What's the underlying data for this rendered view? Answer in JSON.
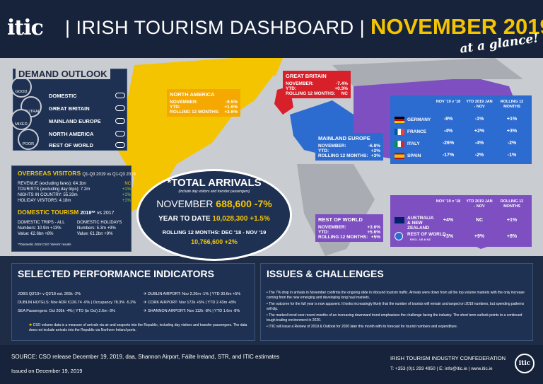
{
  "header": {
    "logo": "itic",
    "title": "| IRISH TOURISM DASHBOARD |",
    "month": "NOVEMBER 2019",
    "tagline": "at a glance!"
  },
  "demand": {
    "title": "DEMAND OUTLOOK",
    "gauges": [
      "GOOD",
      "NEUTRAL",
      "MIXED",
      "POOR"
    ],
    "items": [
      "DOMESTIC",
      "GREAT BRITAIN",
      "MAINLAND EUROPE",
      "NORTH AMERICA",
      "REST OF WORLD"
    ]
  },
  "north_america": {
    "title": "NORTH AMERICA",
    "rows": [
      {
        "label": "NOVEMBER:",
        "value": "-9.5%"
      },
      {
        "label": "YTD:",
        "value": "+1.6%"
      },
      {
        "label": "ROLLING 12 MONTHS:",
        "value": "+2.6%"
      }
    ]
  },
  "great_britain": {
    "title": "GREAT BRITAIN",
    "rows": [
      {
        "label": "NOVEMBER:",
        "value": "-7.4%"
      },
      {
        "label": "YTD:",
        "value": "+0.3%"
      },
      {
        "label": "ROLLING 12 MONTHS:",
        "value": "NC"
      }
    ]
  },
  "mainland_europe": {
    "title": "MAINLAND EUROPE",
    "rows": [
      {
        "label": "NOVEMBER:",
        "value": "-6.8%"
      },
      {
        "label": "YTD:",
        "value": "+2%"
      },
      {
        "label": "ROLLING 12 MONTHS:",
        "value": "+3%"
      }
    ]
  },
  "rest_of_world": {
    "title": "REST OF WORLD",
    "rows": [
      {
        "label": "NOVEMBER:",
        "value": "+3.6%"
      },
      {
        "label": "YTD:",
        "value": "+5.6%"
      },
      {
        "label": "ROLLING 12 MONTHS:",
        "value": "+5%"
      }
    ]
  },
  "europe_table": {
    "headers": [
      "NOV '19 v '18",
      "YTD 2019 JAN - NOV",
      "ROLLING 12 MONTHS"
    ],
    "rows": [
      {
        "country": "GERMANY",
        "nov": "-8%",
        "ytd": "-1%",
        "rolling": "+1%"
      },
      {
        "country": "FRANCE",
        "nov": "-4%",
        "ytd": "+2%",
        "rolling": "+3%"
      },
      {
        "country": "ITALY",
        "nov": "-26%",
        "ytd": "-4%",
        "rolling": "-2%"
      },
      {
        "country": "SPAIN",
        "nov": "-17%",
        "ytd": "-2%",
        "rolling": "-1%"
      }
    ]
  },
  "row_table": {
    "headers": [
      "NOV '19 v '18",
      "YTD 2019 JAN - NOV",
      "ROLLING 12 MONTHS"
    ],
    "rows": [
      {
        "country": "AUSTRALIA & NEW ZEALAND",
        "sub": "",
        "nov": "+4%",
        "ytd": "NC",
        "rolling": "+1%"
      },
      {
        "country": "REST OF WORLD",
        "sub": "EXCL. US & NZ",
        "nov": "+3%",
        "ytd": "+9%",
        "rolling": "+8%"
      }
    ]
  },
  "overseas": {
    "title": "OVERSEAS VISITORS",
    "period": "Q1-Q3 2019 vs Q1-Q3 2018",
    "rows": [
      {
        "label": "REVENUE (excluding fares): €4.1bn",
        "value": "NC"
      },
      {
        "label": "TOURISTS (excluding day trips): 7.2m",
        "value": "+1%"
      },
      {
        "label": "NIGHTS IN COUNTRY: 55.33m",
        "value": "+1%"
      },
      {
        "label": "HOLIDAY VISITORS: 4.18m",
        "value": "+1%"
      }
    ],
    "domestic_title": "DOMESTIC TOURISM",
    "domestic_year": "2018**",
    "domestic_vs": "vs 2017",
    "trips_title": "DOMESTIC TRIPS - ALL",
    "trips_numbers": "Numbers: 10.9m +13%",
    "trips_value": "Value: €2.6bn +8%",
    "hol_title": "DOMESTIC HOLIDAYS",
    "hol_numbers": "Numbers: 5.3m +9%",
    "hol_value": "Value: €1.2bn +9%",
    "footnote": "**Domestic 2018 CSO ‘interim’ results"
  },
  "arrivals": {
    "title": "*TOTAL ARRIVALS",
    "sub": "(include day visitors and transfer passengers)",
    "nov_label": "NOVEMBER",
    "nov_value": "688,600",
    "nov_change": "-7%",
    "ytd_label": "YEAR TO DATE",
    "ytd_value": "10,028,300",
    "ytd_change": "+1.5%",
    "rolling_label": "ROLLING 12 MONTHS: DEC '18 - NOV '19",
    "rolling_value": "10,766,600",
    "rolling_change": "+2%"
  },
  "spi": {
    "title": "SELECTED PERFORMANCE INDICATORS",
    "left": [
      "JOBS Q3'19+ v Q3'18 est. 265k -2%",
      "DUBLIN HOTELS: Nov ADR €126.74 -6% | Occupancy 78.3% -5.2%",
      "SEA Passengers: Oct 205k -4% | YTD (to Oct) 2.6m -3%"
    ],
    "right": [
      "DUBLIN AIRPORT: Nov 2.26m -1% | YTD 30.6m +5%",
      "CORK AIRPORT: Nov 172k +5% | YTD 2.43m +8%",
      "SHANNON AIRPORT: Nov 112k -8% | YTD 1.6m -8%"
    ],
    "note": "CSO volume data is a measure of arrivals via air and seaports into the Republic, including day visitors and transfer passengers. The data does not include arrivals into the Republic via Northern Ireland ports."
  },
  "issues": {
    "title": "ISSUES & CHALLENGES",
    "points": [
      "The 7% drop in arrivals in November confirms the ongoing slide in inbound tourism traffic. Arrivals were down from all the top volume markets with the only increase coming from the new emerging and developing long haul markets.",
      "The outcome for the full year is now apparent. It looks increasingly likely that the number of tourists will remain unchanged on 2018 numbers, but spending patterns will dip.",
      "The marked trend over recent months of an increasing downward trend emphasises the challenge facing the industry. The short term outlook points to a continued tough trading environment in 2020.",
      "ITIC will issue a Review of 2019 & Outlook for 2020 later this month with its forecast for tourist numbers and expenditure."
    ]
  },
  "footer": {
    "source": "SOURCE: CSO release December 19, 2019, daa, Shannon Airport, Fáilte Ireland, STR, and ITIC estimates",
    "issued": "Issued on December 19, 2019",
    "org": "IRISH TOURISM INDUSTRY CONFEDERATION",
    "contact": "T: +353 (0)1 293 4950 | E: info@itic.ie | www.itic.ie",
    "logo": "itic"
  },
  "colors": {
    "north_america": "#f5a800",
    "great_britain": "#d8202a",
    "mainland_europe": "#2c6bd0",
    "rest_of_world": "#7d4fc0",
    "accent": "#f5c400"
  }
}
